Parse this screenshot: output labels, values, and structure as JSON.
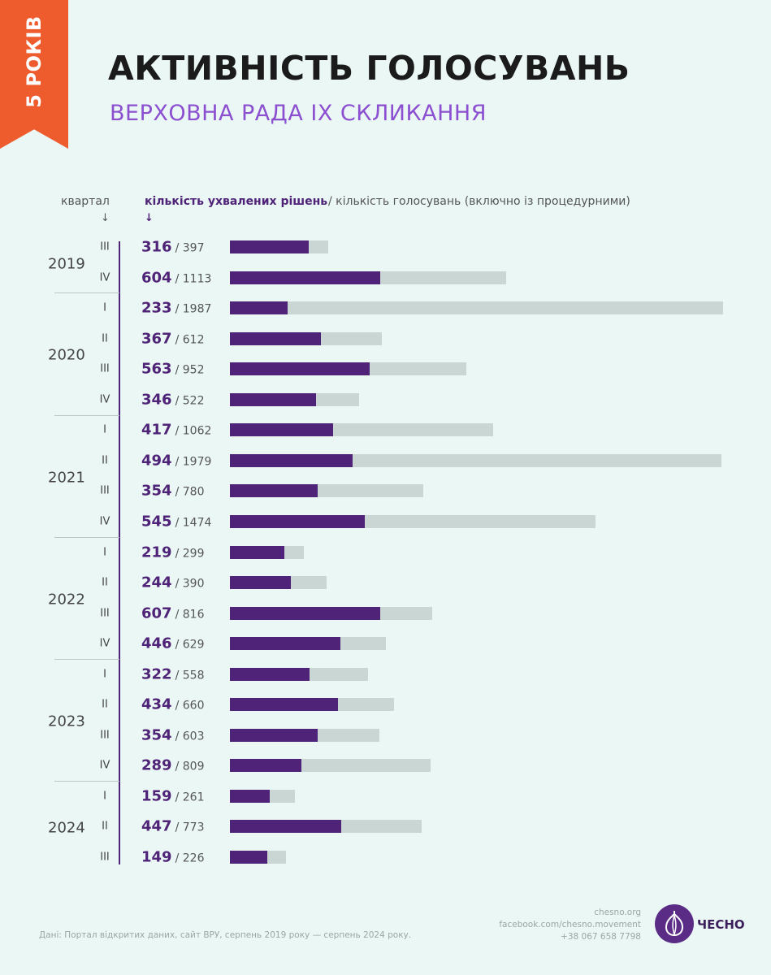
{
  "badge": "5 РОКІВ",
  "title": "АКТИВНІСТЬ ГОЛОСУВАНЬ",
  "subtitle": "ВЕРХОВНА РАДА IX СКЛИКАННЯ",
  "header": {
    "quarter": "квартал",
    "approved": "кількість ухвалених рішень",
    "total": "/ кількість голосувань (включно із процедурними)",
    "arrow": "↓"
  },
  "colors": {
    "approved": "#4f2377",
    "total": "#c9d6d3",
    "ribbon": "#ee5b2d",
    "subtitle": "#8b4fd0"
  },
  "chart_data": {
    "type": "bar",
    "orientation": "horizontal",
    "stacked_overlay": true,
    "years": [
      {
        "year": "2019",
        "rows": 2
      },
      {
        "year": "2020",
        "rows": 4
      },
      {
        "year": "2021",
        "rows": 4
      },
      {
        "year": "2022",
        "rows": 4
      },
      {
        "year": "2023",
        "rows": 4
      },
      {
        "year": "2024",
        "rows": 3
      }
    ],
    "categories": [
      "III",
      "IV",
      "I",
      "II",
      "III",
      "IV",
      "I",
      "II",
      "III",
      "IV",
      "I",
      "II",
      "III",
      "IV",
      "I",
      "II",
      "III",
      "IV",
      "I",
      "II",
      "III"
    ],
    "series": [
      {
        "name": "кількість ухвалених рішень",
        "values": [
          316,
          604,
          233,
          367,
          563,
          346,
          417,
          494,
          354,
          545,
          219,
          244,
          607,
          446,
          322,
          434,
          354,
          289,
          159,
          447,
          149
        ]
      },
      {
        "name": "кількість голосувань (включно із процедурними)",
        "values": [
          397,
          1113,
          1987,
          612,
          952,
          522,
          1062,
          1979,
          780,
          1474,
          299,
          390,
          816,
          629,
          558,
          660,
          603,
          809,
          261,
          773,
          226
        ]
      }
    ]
  },
  "footer": {
    "source": "Дані: Портал відкритих даних, сайт ВРУ, серпень 2019 року — серпень 2024 року.",
    "site": "chesno.org",
    "facebook": "facebook.com/chesno.movement",
    "phone": "+38 067 658 7798",
    "logo": "ЧЕСНО"
  }
}
